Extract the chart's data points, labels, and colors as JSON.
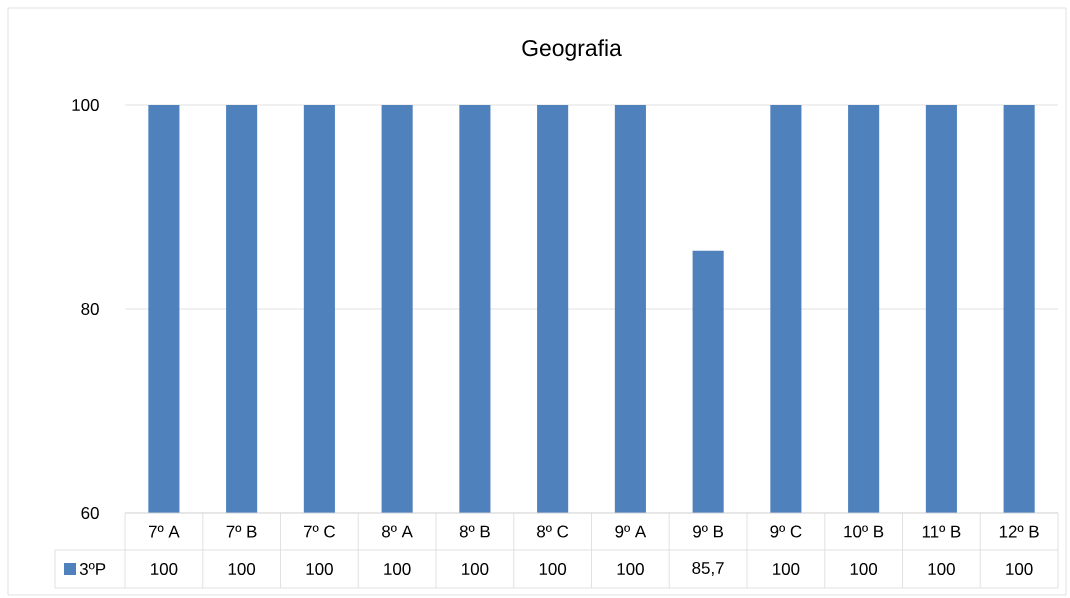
{
  "chart_data": {
    "type": "bar",
    "title": "Geografia",
    "categories": [
      "7º A",
      "7º B",
      "7º C",
      "8º A",
      "8º B",
      "8º C",
      "9º A",
      "9º B",
      "9º C",
      "10º B",
      "11º B",
      "12º B"
    ],
    "series": [
      {
        "name": "3ºP",
        "color": "#4f81bd",
        "values": [
          100,
          100,
          100,
          100,
          100,
          100,
          100,
          85.7,
          100,
          100,
          100,
          100
        ],
        "value_labels": [
          "100",
          "100",
          "100",
          "100",
          "100",
          "100",
          "100",
          "85,7",
          "100",
          "100",
          "100",
          "100"
        ]
      }
    ],
    "ylim": [
      60,
      100
    ],
    "yticks": [
      60,
      80,
      100
    ],
    "grid": "y",
    "legend": "bottom"
  }
}
